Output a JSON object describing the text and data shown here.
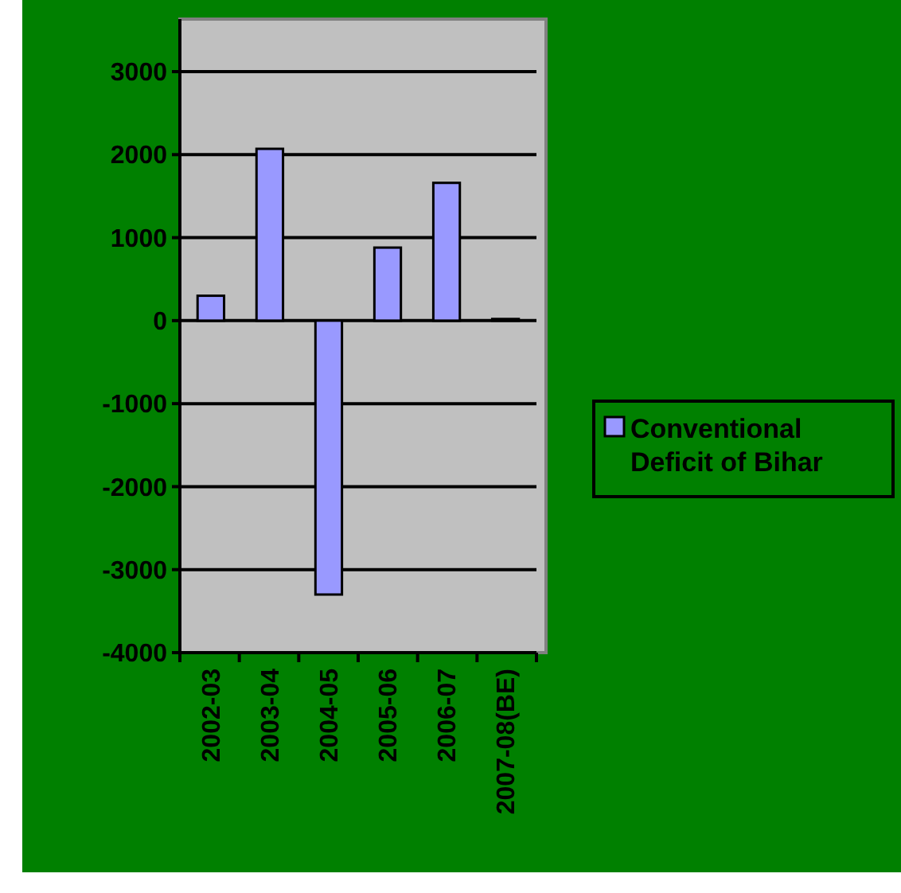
{
  "chart_data": {
    "type": "bar",
    "categories": [
      "2002-03",
      "2003-04",
      "2004-05",
      "2005-06",
      "2006-07",
      "2007-08(BE)"
    ],
    "series": [
      {
        "name": "Conventional Deficit of Bihar",
        "color": "#9999ff",
        "values": [
          300,
          2070,
          -3300,
          880,
          1660,
          20
        ]
      }
    ],
    "ylim": [
      -4000,
      3000
    ],
    "yticks": [
      -4000,
      -3000,
      -2000,
      -1000,
      0,
      1000,
      2000,
      3000
    ],
    "grid": "y",
    "legend": "right"
  }
}
